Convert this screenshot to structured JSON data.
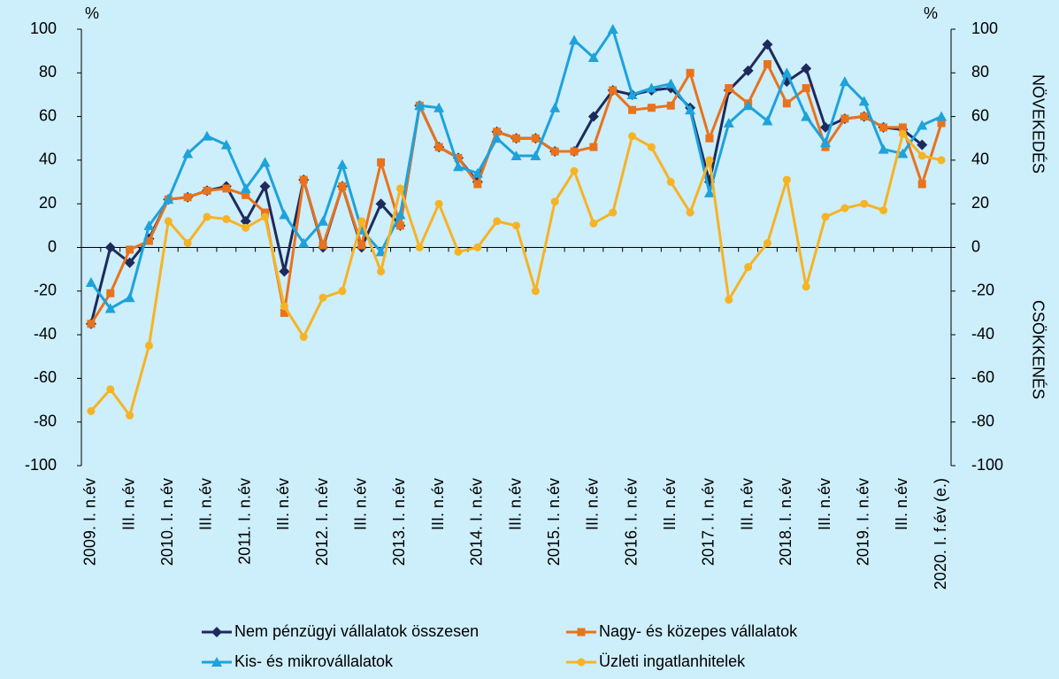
{
  "chart_data": {
    "type": "line",
    "y_unit_left": "%",
    "y_unit_right": "%",
    "annotations": [
      "NÖVEKEDÉS",
      "CSÖKKENÉS"
    ],
    "categories": [
      "2009. I. n.év",
      null,
      "III. n.év",
      null,
      "2010. I. n.év",
      null,
      "III. n.év",
      null,
      "2011. I. n.év",
      null,
      "III. n.év",
      null,
      "2012. I. n.év",
      null,
      "III. n.év",
      null,
      "2013. I. n.év",
      null,
      "III. n.év",
      null,
      "2014. I. n.év",
      null,
      "III. n.év",
      null,
      "2015. I. n.év",
      null,
      "III. n.év",
      null,
      "2016. I. n.év",
      null,
      "III. n.év",
      null,
      "2017. I. n.év",
      null,
      "III. n.év",
      null,
      "2018. I. n.év",
      null,
      "III. n.év",
      null,
      "2019. I. n.év",
      null,
      "III. n.év",
      null,
      "2020. I. f.év (e.)"
    ],
    "series": [
      {
        "name": "Nem pénzügyi vállalatok összesen",
        "color": "#1f2a5c",
        "marker": "diamond",
        "values": [
          -35,
          0,
          -7,
          4,
          22,
          23,
          26,
          28,
          12,
          28,
          -11,
          31,
          0,
          28,
          0,
          20,
          10,
          65,
          46,
          41,
          30,
          53,
          50,
          50,
          44,
          44,
          60,
          72,
          70,
          72,
          73,
          64,
          30,
          72,
          81,
          93,
          76,
          82,
          55,
          59,
          60,
          55,
          54,
          47,
          null
        ]
      },
      {
        "name": "Nagy- és közepes vállalatok",
        "color": "#e8731c",
        "marker": "square",
        "values": [
          -35,
          -21,
          -1,
          3,
          22,
          23,
          26,
          27,
          24,
          16,
          -30,
          31,
          1,
          28,
          1,
          39,
          10,
          65,
          46,
          41,
          29,
          53,
          50,
          50,
          44,
          44,
          46,
          72,
          63,
          64,
          65,
          80,
          50,
          73,
          66,
          84,
          66,
          73,
          46,
          59,
          60,
          55,
          55,
          29,
          57
        ]
      },
      {
        "name": "Kis- és mikrovállalatok",
        "color": "#1da2dc",
        "marker": "triangle",
        "values": [
          -16,
          -28,
          -23,
          10,
          22,
          43,
          51,
          47,
          27,
          39,
          15,
          2,
          12,
          38,
          8,
          -2,
          15,
          65,
          64,
          37,
          34,
          50,
          42,
          42,
          64,
          95,
          87,
          100,
          70,
          73,
          75,
          63,
          25,
          57,
          65,
          58,
          80,
          60,
          48,
          76,
          67,
          45,
          43,
          56,
          60
        ]
      },
      {
        "name": "Üzleti ingatlanhitelek",
        "color": "#f6b324",
        "marker": "circle",
        "values": [
          -75,
          -65,
          -77,
          -45,
          12,
          2,
          14,
          13,
          9,
          14,
          -27,
          -41,
          -23,
          -20,
          12,
          -11,
          27,
          0,
          20,
          -2,
          0,
          12,
          10,
          -20,
          21,
          35,
          11,
          16,
          51,
          46,
          30,
          16,
          40,
          -24,
          -9,
          2,
          31,
          -18,
          14,
          18,
          20,
          17,
          52,
          42,
          40
        ]
      }
    ],
    "ylim": [
      -100,
      100
    ],
    "yticks": [
      -100,
      -80,
      -60,
      -40,
      -20,
      0,
      20,
      40,
      60,
      80,
      100
    ],
    "y2lim": [
      -100,
      100
    ],
    "y2ticks": [
      -100,
      -80,
      -60,
      -40,
      -20,
      0,
      20,
      40,
      60,
      80,
      100
    ],
    "grid": false
  }
}
